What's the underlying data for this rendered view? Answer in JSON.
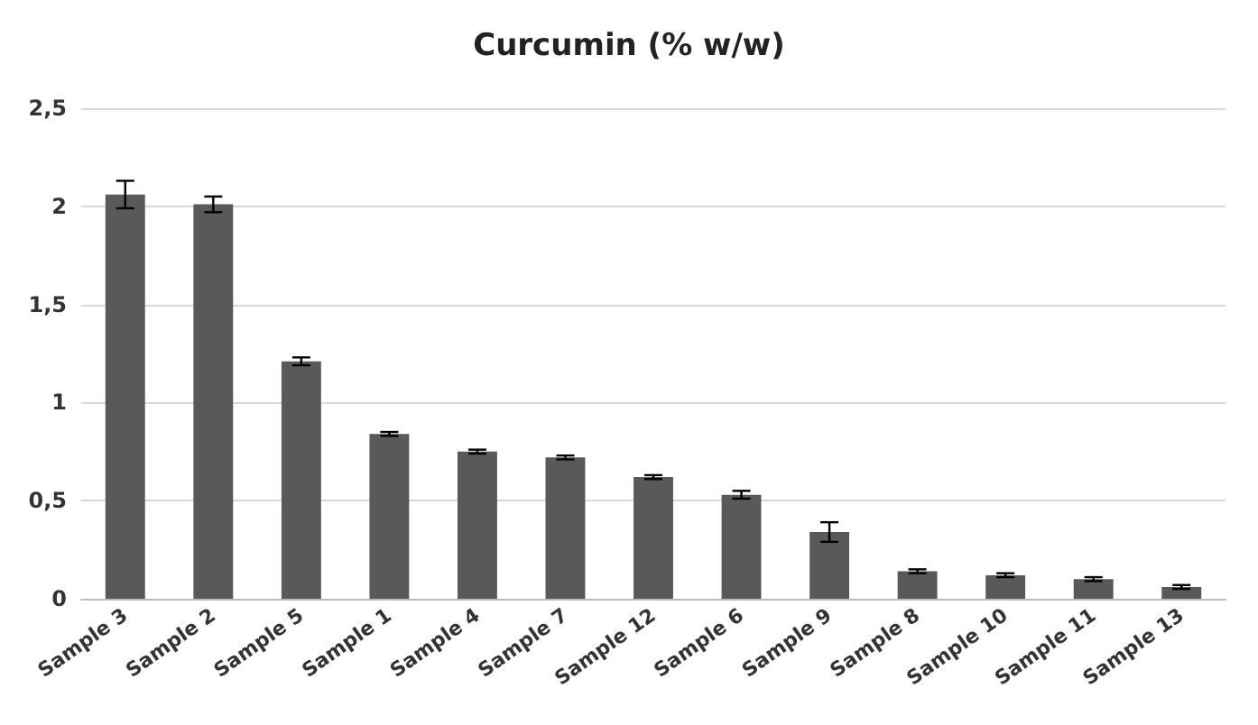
{
  "chart_data": {
    "type": "bar",
    "title": "Curcumin (% w/w)",
    "categories": [
      "Sample 3",
      "Sample 2",
      "Sample 5",
      "Sample 1",
      "Sample 4",
      "Sample 7",
      "Sample 12",
      "Sample 6",
      "Sample 9",
      "Sample 8",
      "Sample 10",
      "Sample 11",
      "Sample 13"
    ],
    "values": [
      2.06,
      2.01,
      1.21,
      0.84,
      0.75,
      0.72,
      0.62,
      0.53,
      0.34,
      0.14,
      0.12,
      0.1,
      0.06
    ],
    "errors": [
      0.07,
      0.04,
      0.02,
      0.01,
      0.01,
      0.01,
      0.01,
      0.02,
      0.05,
      0.01,
      0.01,
      0.01,
      0.01
    ],
    "color": "#595959",
    "ylim": [
      0,
      2.5
    ],
    "yticks": [
      0,
      {
        "value": 0.5,
        "label": "0,5"
      },
      1,
      {
        "value": 1.5,
        "label": "1,5"
      },
      2,
      {
        "value": 2.5,
        "label": "2,5"
      }
    ],
    "grid": "y"
  }
}
